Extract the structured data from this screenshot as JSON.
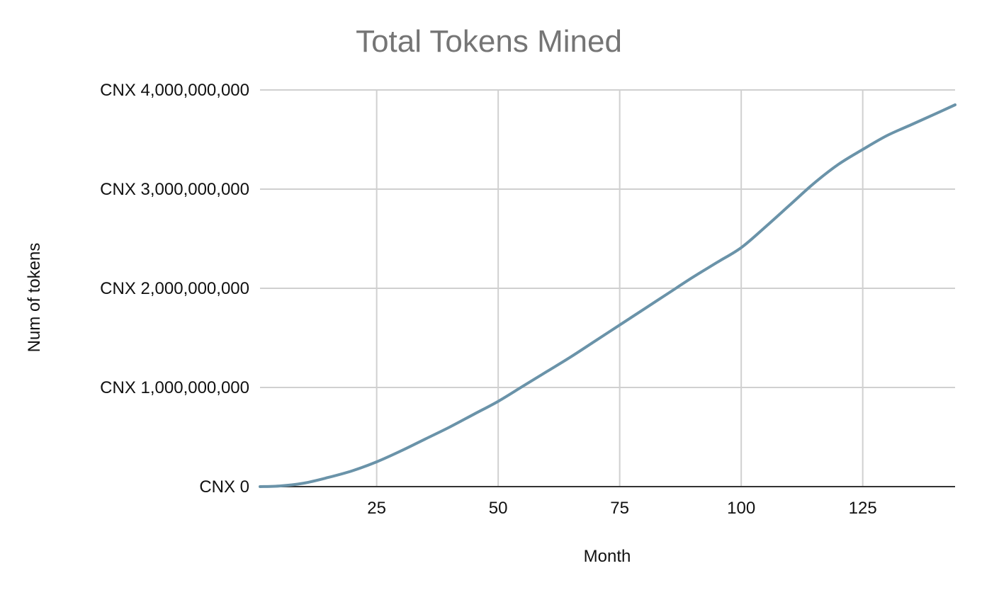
{
  "chart_data": {
    "type": "line",
    "title": "Total Tokens Mined",
    "xlabel": "Month",
    "ylabel": "Num of tokens",
    "xlim": [
      1,
      144
    ],
    "ylim": [
      0,
      4000000000
    ],
    "x_ticks": [
      25,
      50,
      75,
      100,
      125
    ],
    "x_tick_labels": [
      "25",
      "50",
      "75",
      "100",
      "125"
    ],
    "y_ticks": [
      0,
      1000000000,
      2000000000,
      3000000000,
      4000000000
    ],
    "y_tick_labels": [
      "CNX 0",
      "CNX 1,000,000,000",
      "CNX 2,000,000,000",
      "CNX 3,000,000,000",
      "CNX 4,000,000,000"
    ],
    "grid": true,
    "legend": "none",
    "colors": {
      "series": "#6a93a9",
      "title": "#757575",
      "grid": "#d0d0d0",
      "baseline": "#333333",
      "text": "#111111"
    },
    "series": [
      {
        "values": [
          [
            1,
            0
          ],
          [
            5,
            6000000
          ],
          [
            10,
            35000000
          ],
          [
            15,
            92000000
          ],
          [
            20,
            160000000
          ],
          [
            25,
            250000000
          ],
          [
            30,
            360000000
          ],
          [
            35,
            480000000
          ],
          [
            40,
            600000000
          ],
          [
            45,
            730000000
          ],
          [
            50,
            860000000
          ],
          [
            55,
            1010000000
          ],
          [
            60,
            1160000000
          ],
          [
            65,
            1310000000
          ],
          [
            70,
            1470000000
          ],
          [
            75,
            1630000000
          ],
          [
            80,
            1790000000
          ],
          [
            85,
            1950000000
          ],
          [
            90,
            2110000000
          ],
          [
            95,
            2260000000
          ],
          [
            100,
            2410000000
          ],
          [
            105,
            2620000000
          ],
          [
            110,
            2840000000
          ],
          [
            115,
            3060000000
          ],
          [
            120,
            3250000000
          ],
          [
            125,
            3400000000
          ],
          [
            130,
            3540000000
          ],
          [
            135,
            3650000000
          ],
          [
            140,
            3760000000
          ],
          [
            144,
            3850000000
          ]
        ]
      }
    ]
  }
}
